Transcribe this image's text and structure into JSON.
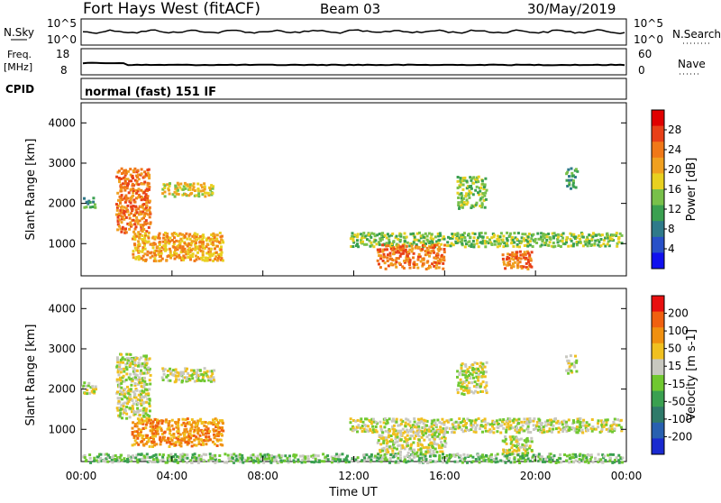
{
  "header": {
    "title": "Fort Hays West (fitACF)",
    "beam": "Beam 03",
    "date": "30/May/2019"
  },
  "nsky_panel": {
    "left_label": "N.Sky",
    "right_label": "N.Search",
    "ticks": [
      "10^5",
      "10^0"
    ]
  },
  "freq_panel": {
    "left_label_top": "Freq.",
    "left_label_bottom": "[MHz]",
    "right_label": "Nave",
    "left_ticks": [
      "18",
      "8"
    ],
    "right_ticks": [
      "60",
      "0"
    ]
  },
  "cpid_panel": {
    "label": "CPID",
    "mode": "normal (fast) 151 IF"
  },
  "chart_data": [
    {
      "type": "heatmap",
      "name": "power",
      "ylabel": "Slant Range [km]",
      "xlabel": "",
      "ylim": [
        200,
        4500
      ],
      "yticks": [
        "1000",
        "2000",
        "3000",
        "4000"
      ],
      "xticks": [
        "00:00",
        "04:00",
        "08:00",
        "12:00",
        "16:00",
        "20:00",
        "00:00"
      ],
      "colorbar": {
        "label": "Power [dB]",
        "ticks": [
          "4",
          "8",
          "12",
          "16",
          "20",
          "24",
          "28"
        ],
        "colors": [
          "#1010ee",
          "#2850c8",
          "#2f7a8a",
          "#3aa050",
          "#78c04a",
          "#e8d020",
          "#f0a020",
          "#f07818",
          "#e84018",
          "#e00000"
        ]
      },
      "regions": [
        {
          "t": [
            0.0,
            0.6
          ],
          "r": [
            1900,
            2200
          ],
          "level": 3
        },
        {
          "t": [
            1.5,
            3.0
          ],
          "r": [
            1300,
            2900
          ],
          "level": 7
        },
        {
          "t": [
            3.5,
            5.8
          ],
          "r": [
            2200,
            2550
          ],
          "level": 5
        },
        {
          "t": [
            2.2,
            6.2
          ],
          "r": [
            600,
            1300
          ],
          "level": 6
        },
        {
          "t": [
            11.8,
            23.8
          ],
          "r": [
            950,
            1300
          ],
          "level": 4
        },
        {
          "t": [
            13.0,
            16.0
          ],
          "r": [
            400,
            1000
          ],
          "level": 7
        },
        {
          "t": [
            16.5,
            17.8
          ],
          "r": [
            1900,
            2700
          ],
          "level": 4
        },
        {
          "t": [
            18.5,
            19.8
          ],
          "r": [
            400,
            850
          ],
          "level": 7
        },
        {
          "t": [
            21.3,
            21.8
          ],
          "r": [
            2400,
            2900
          ],
          "level": 3
        }
      ]
    },
    {
      "type": "heatmap",
      "name": "velocity",
      "ylabel": "Slant Range [km]",
      "xlabel": "Time UT",
      "ylim": [
        200,
        4500
      ],
      "yticks": [
        "1000",
        "2000",
        "3000",
        "4000"
      ],
      "xticks": [
        "00:00",
        "04:00",
        "08:00",
        "12:00",
        "16:00",
        "20:00",
        "00:00"
      ],
      "colorbar": {
        "label": "Velocity [m s-1]",
        "ticks": [
          "200",
          "100",
          "50",
          "15",
          "-15",
          "-50",
          "-100",
          "-200"
        ],
        "colors": [
          "#1a2ad0",
          "#2860b0",
          "#2f7a6a",
          "#3aa050",
          "#70c830",
          "#c8c8c0",
          "#f0c020",
          "#f09010",
          "#f06010",
          "#e81010"
        ]
      },
      "regions": [
        {
          "t": [
            0.0,
            0.6
          ],
          "r": [
            1900,
            2200
          ],
          "level": 5
        },
        {
          "t": [
            1.5,
            3.0
          ],
          "r": [
            1300,
            2900
          ],
          "level": 5
        },
        {
          "t": [
            3.5,
            5.8
          ],
          "r": [
            2200,
            2550
          ],
          "level": 5
        },
        {
          "t": [
            2.2,
            6.2
          ],
          "r": [
            600,
            1300
          ],
          "level": 7
        },
        {
          "t": [
            11.8,
            23.8
          ],
          "r": [
            950,
            1300
          ],
          "level": 5
        },
        {
          "t": [
            13.0,
            16.0
          ],
          "r": [
            400,
            1000
          ],
          "level": 5
        },
        {
          "t": [
            16.5,
            17.8
          ],
          "r": [
            1900,
            2700
          ],
          "level": 5
        },
        {
          "t": [
            18.5,
            19.8
          ],
          "r": [
            400,
            850
          ],
          "level": 5
        },
        {
          "t": [
            21.3,
            21.8
          ],
          "r": [
            2400,
            2900
          ],
          "level": 5
        },
        {
          "t": [
            0.0,
            23.8
          ],
          "r": [
            200,
            420
          ],
          "level": 4
        }
      ]
    }
  ]
}
